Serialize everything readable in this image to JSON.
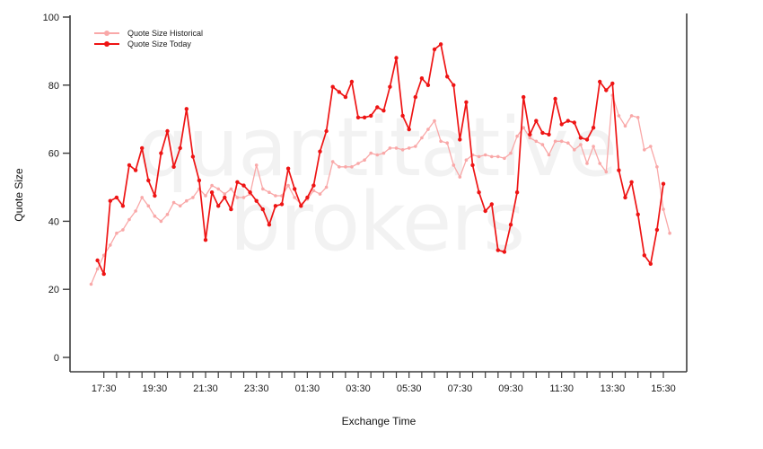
{
  "chart_data": {
    "type": "line",
    "title": "",
    "xlabel": "Exchange Time",
    "ylabel": "Quote Size",
    "x_interval": "15-minute intervals, ticks every 30 minutes",
    "x_tick_labels": [
      "17:30",
      "19:30",
      "21:30",
      "23:30",
      "01:30",
      "03:30",
      "05:30",
      "07:30",
      "09:30",
      "11:30",
      "13:30",
      "15:30"
    ],
    "x_minor_tick_count": 45,
    "y_ticks": [
      0,
      20,
      40,
      60,
      80,
      100
    ],
    "ylim": [
      0,
      100
    ],
    "grid": "off",
    "legend_position": "top-left",
    "series": [
      {
        "name": "Quote Size Historical",
        "color": "#f9a8a8",
        "start_time": "17:00",
        "interval_min": 15,
        "values": [
          21.5,
          26,
          30,
          33,
          36.5,
          37.5,
          40.5,
          43,
          47,
          44.5,
          41.5,
          40,
          42,
          45.5,
          44.5,
          46,
          47,
          49.5,
          47.5,
          50.5,
          49.5,
          48,
          49.5,
          47,
          47,
          48,
          56.5,
          49.5,
          48.5,
          47.5,
          47.5,
          50.5,
          47,
          45,
          46.5,
          49,
          48,
          50,
          57.5,
          56,
          56,
          56,
          57,
          58,
          60,
          59.5,
          60,
          61.5,
          61.5,
          61,
          61.5,
          62,
          64.5,
          67,
          69.5,
          63.5,
          63,
          56.5,
          53,
          58,
          59.5,
          59,
          59.5,
          59,
          59,
          58.5,
          60,
          65,
          67.5,
          64.5,
          63.5,
          62.5,
          59.5,
          63.5,
          63.5,
          63,
          61,
          62.5,
          57,
          62,
          57,
          54.5,
          77,
          71,
          68,
          71,
          70.5,
          61,
          62,
          56,
          43.5,
          36.5
        ]
      },
      {
        "name": "Quote Size Today",
        "color": "#ee1414",
        "start_time": "17:15",
        "interval_min": 15,
        "values": [
          28.5,
          24.5,
          46,
          47,
          44.5,
          56.5,
          55,
          61.5,
          52,
          47.5,
          60,
          66.5,
          56,
          61.5,
          73,
          59,
          52,
          34.5,
          48.5,
          44.5,
          47,
          43.5,
          51.5,
          50.5,
          48.5,
          46,
          43.5,
          39,
          44.5,
          45,
          55.5,
          49.5,
          44.5,
          47,
          50.5,
          60.5,
          66.5,
          79.5,
          78,
          76.5,
          81,
          70.5,
          70.5,
          71,
          73.5,
          72.5,
          79.5,
          88,
          71,
          67,
          76.5,
          82,
          80,
          90.5,
          92,
          82.5,
          80,
          64,
          75,
          56.5,
          48.5,
          43,
          45,
          31.5,
          31,
          39,
          48.5,
          76.5,
          65.5,
          69.5,
          66,
          65.5,
          76,
          68.5,
          69.5,
          69,
          64.5,
          64,
          67.5,
          81,
          78.5,
          80.5,
          55,
          47,
          51.5,
          42,
          30,
          27.5,
          37.5,
          51
        ]
      }
    ]
  },
  "watermark": {
    "line1": "quantitative",
    "line2": "brokers"
  },
  "axis_color": "#3c3c3c",
  "tick_label_color": "#1a1a1a"
}
